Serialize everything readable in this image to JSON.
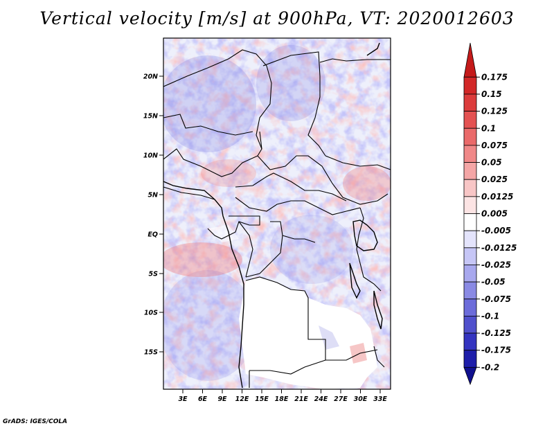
{
  "title": "Vertical velocity [m/s] at 900hPa, VT: 2020012603",
  "credit": "GrADS: IGES/COLA",
  "map": {
    "lat_labels": [
      "20N",
      "15N",
      "10N",
      "5N",
      "EQ",
      "5S",
      "10S",
      "15S"
    ],
    "lon_labels": [
      "3E",
      "6E",
      "9E",
      "12E",
      "15E",
      "18E",
      "21E",
      "24E",
      "27E",
      "30E",
      "33E"
    ]
  },
  "colorbar": {
    "labels": [
      "0.175",
      "0.15",
      "0.125",
      "0.1",
      "0.075",
      "0.05",
      "0.025",
      "0.0125",
      "0.005",
      "-0.005",
      "-0.0125",
      "-0.025",
      "-0.05",
      "-0.075",
      "-0.1",
      "-0.125",
      "-0.175",
      "-0.2"
    ],
    "colors": [
      "#c41a1a",
      "#d22828",
      "#dc3c3c",
      "#e45252",
      "#ea6a6a",
      "#f08888",
      "#f4a6a6",
      "#f8c6c6",
      "#fce4e4",
      "#ffffff",
      "#e4e4fc",
      "#c6c6f6",
      "#a8a8ee",
      "#8a8ae4",
      "#6c6cda",
      "#5050cc",
      "#3434c0",
      "#1e1eaa",
      "#10108e"
    ]
  }
}
